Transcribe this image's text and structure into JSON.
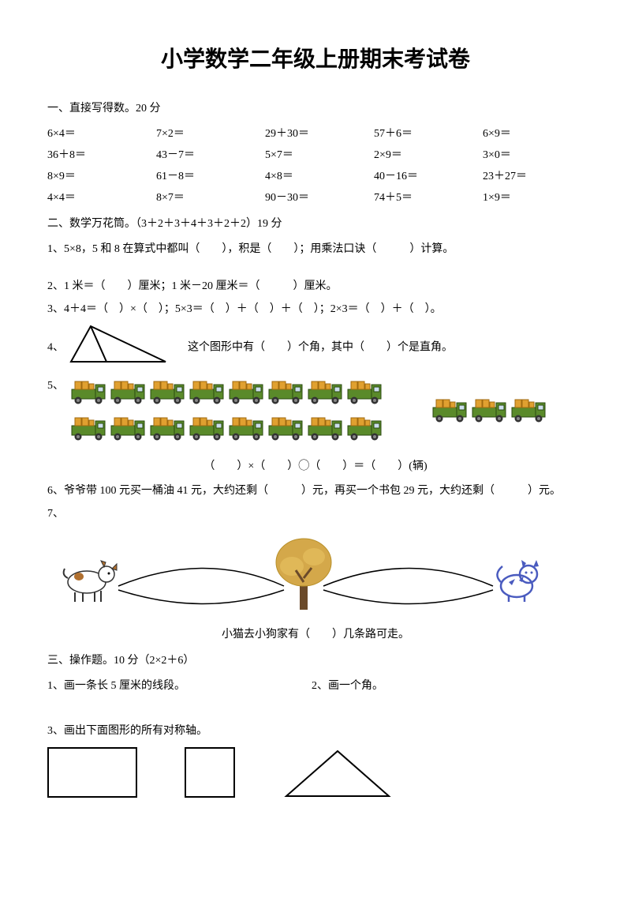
{
  "title": "小学数学二年级上册期末考试卷",
  "section1": {
    "heading": "一、直接写得数。20 分",
    "cells": [
      "6×4＝",
      "7×2＝",
      "29＋30＝",
      "57＋6＝",
      "6×9＝",
      "36＋8＝",
      "43－7＝",
      "5×7＝",
      "2×9＝",
      "3×0＝",
      "8×9＝",
      "61－8＝",
      "4×8＝",
      "40－16＝",
      "23＋27＝",
      "4×4＝",
      "8×7＝",
      "90－30＝",
      "74＋5＝",
      "1×9＝"
    ]
  },
  "section2": {
    "heading": "二、数学万花筒。（3＋2＋3＋4＋3＋2＋2）19 分",
    "q1": "1、5×8，5 和 8 在算式中都叫（　　），积是（　　）；用乘法口诀（　　　）计算。",
    "q2": "2、1 米＝（　　）厘米；1 米－20 厘米＝（　　　）厘米。",
    "q3": "3、4＋4＝（　）×（　）；5×3＝（　）＋（　）＋（　）；2×3＝（　）＋（　）。",
    "q4_prefix": "4、",
    "q4_text": "这个图形中有（　　）个角，其中（　　）个是直角。",
    "q5_prefix": "5、",
    "q5_eq": "（　　）×（　　）◯（　　）＝（　　）(辆)",
    "q6": "6、爷爷带 100 元买一桶油 41 元，大约还剩（　　　）元，再买一个书包 29 元，大约还剩（　　　）元。",
    "q7_prefix": "7、",
    "q7_caption": "小猫去小狗家有（　　）几条路可走。"
  },
  "section3": {
    "heading": "三、操作题。10 分（2×2＋6）",
    "q1": "1、画一条长 5 厘米的线段。",
    "q2": "2、画一个角。",
    "q3": "3、画出下面图形的所有对称轴。"
  },
  "colors": {
    "truck_body": "#5a8a2a",
    "truck_cargo": "#e0a030",
    "truck_wheel": "#333",
    "tree_leaves": "#d4a84a",
    "tree_trunk": "#6b4a2a",
    "cat": "#4a5bbf",
    "dog_outline": "#333",
    "dog_spot": "#b07030"
  }
}
